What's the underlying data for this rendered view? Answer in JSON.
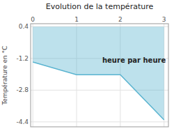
{
  "chart_data": {
    "type": "area",
    "title": "Evolution de la température",
    "y_label": "Température en °C",
    "annotation": "heure par heure",
    "x": [
      0,
      1,
      2,
      3
    ],
    "values": [
      -1.38,
      -2.02,
      -2.02,
      -4.3
    ],
    "baseline": 0.4,
    "color": "#5ab4d0",
    "xlim": [
      -0.05,
      3.1
    ],
    "ylim": [
      -4.65,
      0.55
    ],
    "xticks": [
      0,
      1,
      2,
      3
    ],
    "yticks": [
      0.4,
      -1.2,
      -2.8,
      -4.4
    ],
    "grid": true
  }
}
